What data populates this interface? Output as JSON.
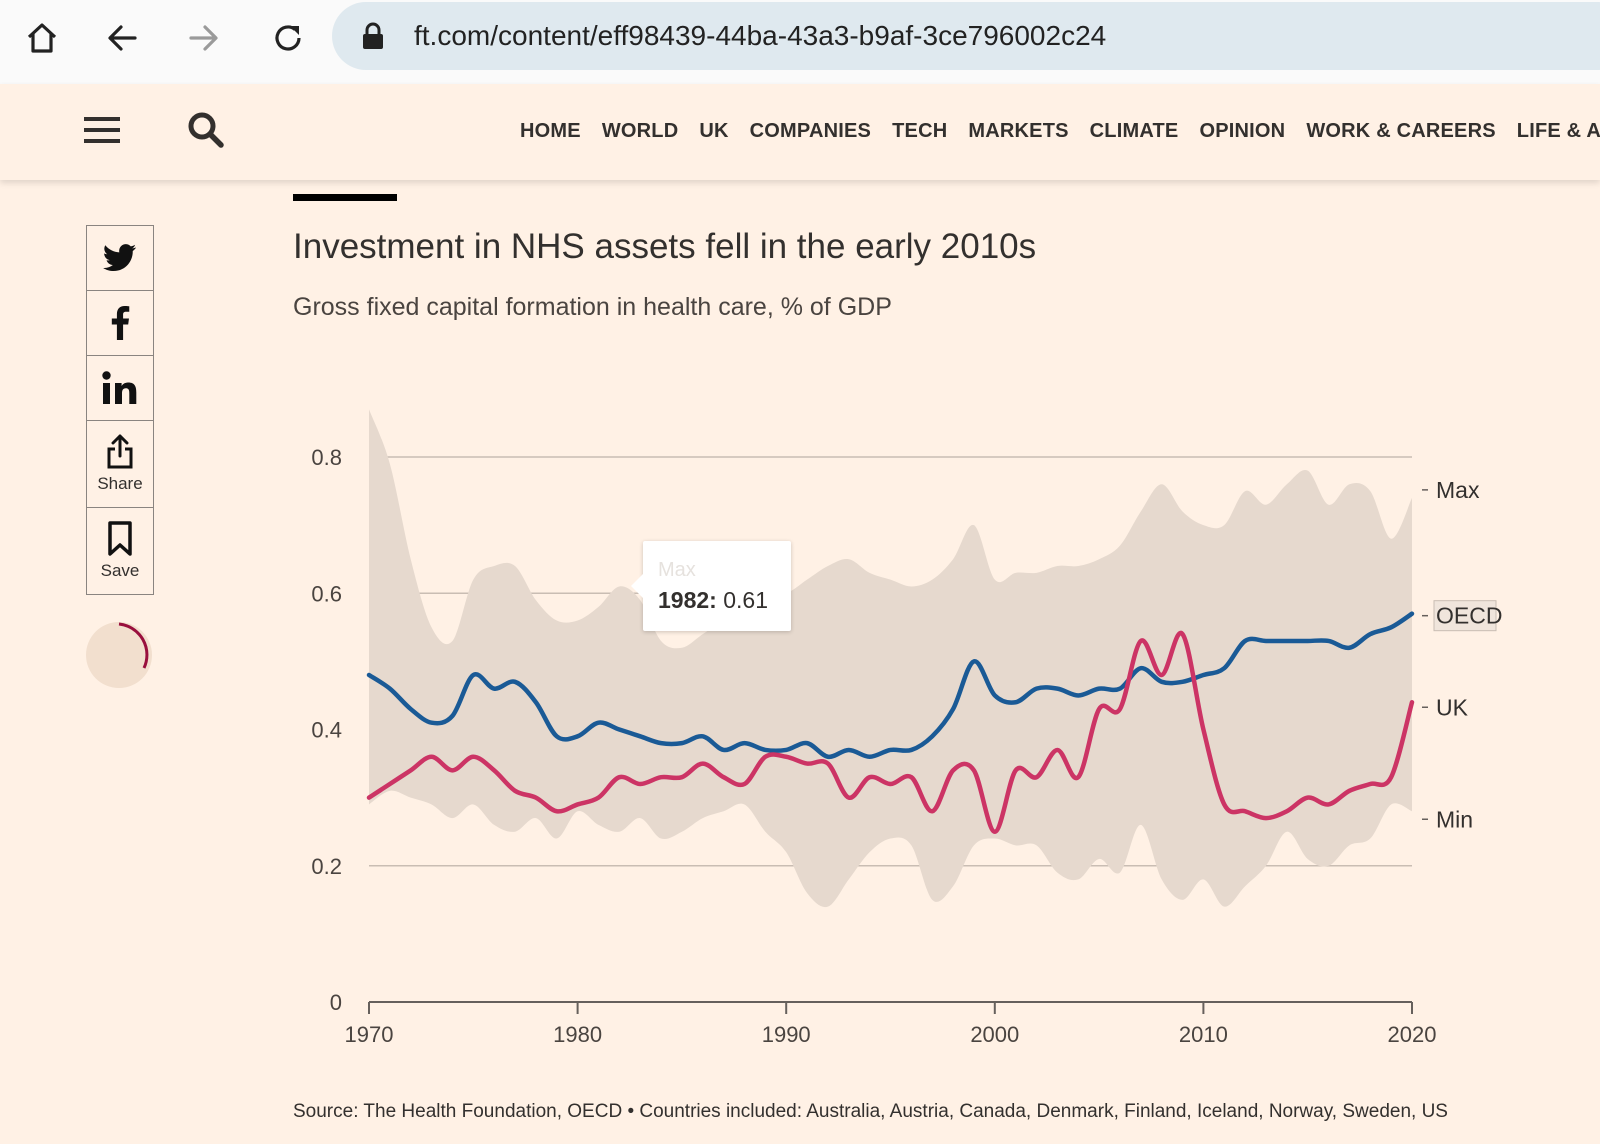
{
  "browser": {
    "url": "ft.com/content/eff98439-44ba-43a3-b9af-3ce796002c24"
  },
  "nav": {
    "links": [
      "HOME",
      "WORLD",
      "UK",
      "COMPANIES",
      "TECH",
      "MARKETS",
      "CLIMATE",
      "OPINION",
      "WORK & CAREERS",
      "LIFE & ARTS"
    ]
  },
  "share": {
    "share_label": "Share",
    "save_label": "Save"
  },
  "article": {
    "title": "Investment in NHS assets fell in the early 2010s",
    "subtitle": "Gross fixed capital formation in health care, % of GDP",
    "source": "Source: The Health Foundation, OECD • Countries included: Australia, Austria, Canada, Denmark, Finland, Iceland, Norway, Sweden, US"
  },
  "tooltip": {
    "series": "Max",
    "year": "1982:",
    "value": "0.61"
  },
  "chart_data": {
    "type": "area",
    "title": "Investment in NHS assets fell in the early 2010s",
    "subtitle": "Gross fixed capital formation in health care, % of GDP",
    "xlim": [
      1970,
      2020
    ],
    "ylim": [
      0,
      0.8
    ],
    "x_ticks": [
      1970,
      1980,
      1990,
      2000,
      2010,
      2020
    ],
    "y_ticks": [
      0,
      0.2,
      0.4,
      0.6,
      0.8
    ],
    "x_tick_labels": [
      "1970",
      "1980",
      "1990",
      "2000",
      "2010",
      "2020"
    ],
    "y_tick_labels": [
      "0",
      "0.2",
      "0.4",
      "0.6",
      "0.8"
    ],
    "grid": true,
    "legend": "direct labels at right end",
    "x": [
      1970,
      1971,
      1972,
      1973,
      1974,
      1975,
      1976,
      1977,
      1978,
      1979,
      1980,
      1981,
      1982,
      1983,
      1984,
      1985,
      1986,
      1987,
      1988,
      1989,
      1990,
      1991,
      1992,
      1993,
      1994,
      1995,
      1996,
      1997,
      1998,
      1999,
      2000,
      2001,
      2002,
      2003,
      2004,
      2005,
      2006,
      2007,
      2008,
      2009,
      2010,
      2011,
      2012,
      2013,
      2014,
      2015,
      2016,
      2017,
      2018,
      2019,
      2020
    ],
    "series": [
      {
        "name": "Max",
        "color": "#e6d9ce",
        "values": [
          0.87,
          0.79,
          0.65,
          0.55,
          0.53,
          0.62,
          0.64,
          0.64,
          0.59,
          0.56,
          0.56,
          0.58,
          0.61,
          0.59,
          0.53,
          0.52,
          0.54,
          0.56,
          0.58,
          0.6,
          0.6,
          0.62,
          0.64,
          0.65,
          0.63,
          0.62,
          0.61,
          0.62,
          0.65,
          0.7,
          0.62,
          0.63,
          0.63,
          0.64,
          0.64,
          0.65,
          0.67,
          0.72,
          0.76,
          0.72,
          0.7,
          0.7,
          0.75,
          0.73,
          0.76,
          0.78,
          0.73,
          0.76,
          0.75,
          0.68,
          0.74
        ]
      },
      {
        "name": "Min",
        "color": "#e6d9ce",
        "values": [
          0.29,
          0.31,
          0.3,
          0.29,
          0.27,
          0.29,
          0.26,
          0.25,
          0.27,
          0.24,
          0.28,
          0.26,
          0.25,
          0.27,
          0.24,
          0.25,
          0.27,
          0.28,
          0.29,
          0.25,
          0.22,
          0.16,
          0.14,
          0.18,
          0.22,
          0.24,
          0.23,
          0.15,
          0.17,
          0.23,
          0.24,
          0.23,
          0.23,
          0.19,
          0.18,
          0.21,
          0.19,
          0.26,
          0.18,
          0.15,
          0.18,
          0.14,
          0.17,
          0.2,
          0.25,
          0.21,
          0.2,
          0.23,
          0.24,
          0.29,
          0.28
        ]
      },
      {
        "name": "OECD",
        "color": "#1a5a96",
        "values": [
          0.48,
          0.46,
          0.43,
          0.41,
          0.42,
          0.48,
          0.46,
          0.47,
          0.44,
          0.39,
          0.39,
          0.41,
          0.4,
          0.39,
          0.38,
          0.38,
          0.39,
          0.37,
          0.38,
          0.37,
          0.37,
          0.38,
          0.36,
          0.37,
          0.36,
          0.37,
          0.37,
          0.39,
          0.43,
          0.5,
          0.45,
          0.44,
          0.46,
          0.46,
          0.45,
          0.46,
          0.46,
          0.49,
          0.47,
          0.47,
          0.48,
          0.49,
          0.53,
          0.53,
          0.53,
          0.53,
          0.53,
          0.52,
          0.54,
          0.55,
          0.57
        ]
      },
      {
        "name": "UK",
        "color": "#cc3465",
        "values": [
          0.3,
          0.32,
          0.34,
          0.36,
          0.34,
          0.36,
          0.34,
          0.31,
          0.3,
          0.28,
          0.29,
          0.3,
          0.33,
          0.32,
          0.33,
          0.33,
          0.35,
          0.33,
          0.32,
          0.36,
          0.36,
          0.35,
          0.35,
          0.3,
          0.33,
          0.32,
          0.33,
          0.28,
          0.34,
          0.34,
          0.25,
          0.34,
          0.33,
          0.37,
          0.33,
          0.43,
          0.43,
          0.53,
          0.48,
          0.54,
          0.4,
          0.29,
          0.28,
          0.27,
          0.28,
          0.3,
          0.29,
          0.31,
          0.32,
          0.33,
          0.44
        ]
      }
    ],
    "end_labels": [
      "Max",
      "OECD",
      "UK",
      "Min"
    ]
  }
}
